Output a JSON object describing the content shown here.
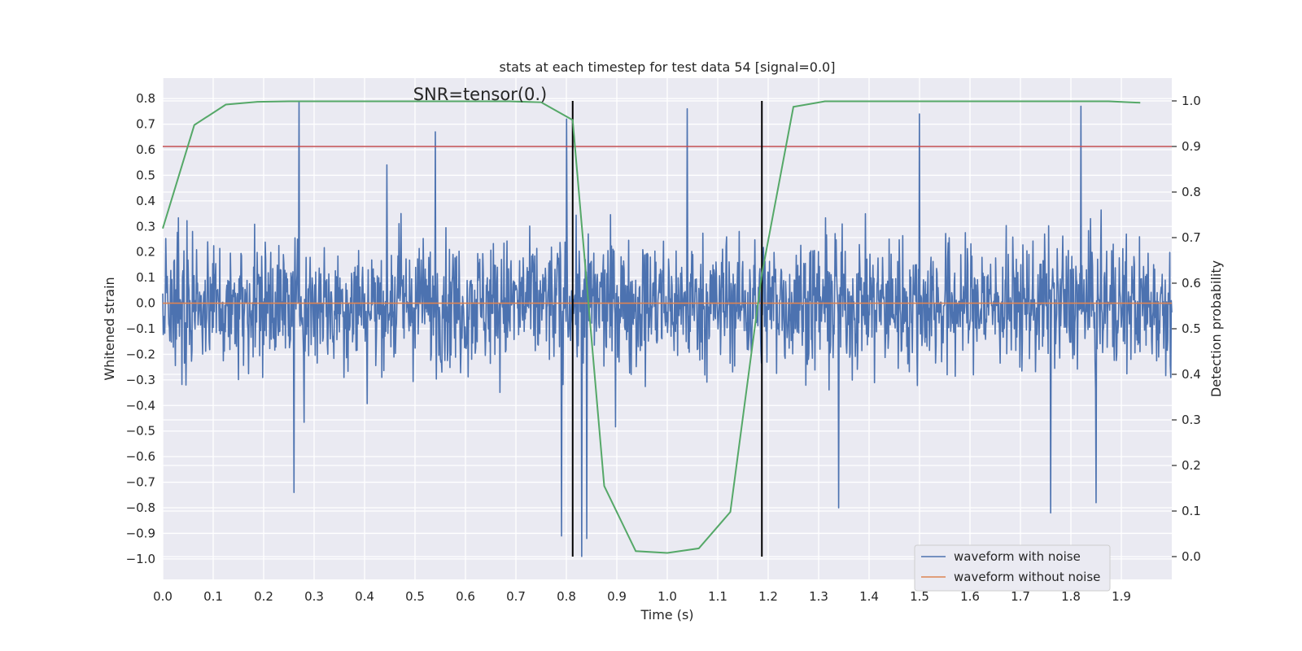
{
  "chart_data": {
    "type": "line",
    "title": "stats at each timestep for test data 54 [signal=0.0]",
    "xlabel": "Time (s)",
    "ylabel_left": "Whitened strain",
    "ylabel_right": "Detection probability",
    "annotation": "SNR=tensor(0.)",
    "xlim": [
      0.0,
      2.0
    ],
    "ylim_left": [
      -1.08,
      0.88
    ],
    "ylim_right": [
      -0.05,
      1.05
    ],
    "x_ticks": [
      0.0,
      0.1,
      0.2,
      0.3,
      0.4,
      0.5,
      0.6,
      0.7,
      0.8,
      0.9,
      1.0,
      1.1,
      1.2,
      1.3,
      1.4,
      1.5,
      1.6,
      1.7,
      1.8,
      1.9
    ],
    "x_tick_labels": [
      "0.0",
      "0.1",
      "0.2",
      "0.3",
      "0.4",
      "0.5",
      "0.6",
      "0.7",
      "0.8",
      "0.9",
      "1.0",
      "1.1",
      "1.2",
      "1.3",
      "1.4",
      "1.5",
      "1.6",
      "1.7",
      "1.8",
      "1.9"
    ],
    "y_left_ticks": [
      0.8,
      0.7,
      0.6,
      0.5,
      0.4,
      0.3,
      0.2,
      0.1,
      0.0,
      -0.1,
      -0.2,
      -0.3,
      -0.4,
      -0.5,
      -0.6,
      -0.7,
      -0.8,
      -0.9,
      -1.0
    ],
    "y_left_tick_labels": [
      "0.8",
      "0.7",
      "0.6",
      "0.5",
      "0.4",
      "0.3",
      "0.2",
      "0.1",
      "0.0",
      "−0.1",
      "−0.2",
      "−0.3",
      "−0.4",
      "−0.5",
      "−0.6",
      "−0.7",
      "−0.8",
      "−0.9",
      "−1.0"
    ],
    "y_right_ticks": [
      1.0,
      0.9,
      0.8,
      0.7,
      0.6,
      0.5,
      0.4,
      0.3,
      0.2,
      0.1,
      0.0
    ],
    "y_right_tick_labels": [
      "1.0",
      "0.9",
      "0.8",
      "0.7",
      "0.6",
      "0.5",
      "0.4",
      "0.3",
      "0.2",
      "0.1",
      "0.0"
    ],
    "grid": true,
    "legend_position": "lower-right",
    "series": [
      {
        "name": "waveform with noise",
        "color": "#4c72b0",
        "axis": "left",
        "description_visible": "dense noisy strain trace",
        "peaks": [
          {
            "x": 0.27,
            "y": 0.79
          },
          {
            "x": 0.54,
            "y": 0.67
          },
          {
            "x": 0.79,
            "y": -0.91
          },
          {
            "x": 0.8,
            "y": 0.72
          },
          {
            "x": 0.83,
            "y": -0.99
          },
          {
            "x": 0.84,
            "y": 0.63
          },
          {
            "x": 0.84,
            "y": -0.92
          },
          {
            "x": 1.04,
            "y": 0.76
          },
          {
            "x": 0.26,
            "y": -0.74
          },
          {
            "x": 1.34,
            "y": -0.8
          },
          {
            "x": 1.5,
            "y": 0.74
          },
          {
            "x": 1.76,
            "y": -0.82
          },
          {
            "x": 1.82,
            "y": 0.77
          },
          {
            "x": 1.85,
            "y": -0.78
          }
        ]
      },
      {
        "name": "waveform without noise",
        "color": "#dd8452",
        "axis": "left",
        "x": [
          0.0,
          2.0
        ],
        "y": [
          0.0,
          0.0
        ]
      },
      {
        "name": "",
        "color": "#55a868",
        "axis": "right",
        "x": [
          0.0,
          0.0625,
          0.125,
          0.1875,
          0.25,
          0.3125,
          0.375,
          0.4375,
          0.5,
          0.5625,
          0.625,
          0.6875,
          0.75,
          0.8125,
          0.875,
          0.9375,
          1.0,
          1.0625,
          1.125,
          1.1875,
          1.25,
          1.3125,
          1.375,
          1.4375,
          1.5,
          1.5625,
          1.625,
          1.6875,
          1.75,
          1.8125,
          1.875,
          1.9375
        ],
        "y": [
          0.72,
          0.947,
          0.992,
          0.998,
          0.999,
          0.999,
          0.999,
          0.999,
          0.999,
          0.999,
          0.999,
          0.999,
          0.997,
          0.958,
          0.155,
          0.012,
          0.008,
          0.018,
          0.098,
          0.62,
          0.987,
          0.999,
          0.999,
          0.999,
          0.999,
          0.999,
          0.999,
          0.999,
          0.999,
          0.999,
          0.999,
          0.996
        ]
      }
    ],
    "threshold_line": {
      "axis": "right",
      "y": 0.9,
      "color": "#c44e52"
    },
    "vertical_lines": [
      {
        "x": 0.8125,
        "color": "#000000"
      },
      {
        "x": 1.1875,
        "color": "#000000"
      }
    ]
  },
  "legend": {
    "item1": "waveform with noise",
    "item2": "waveform without noise"
  }
}
